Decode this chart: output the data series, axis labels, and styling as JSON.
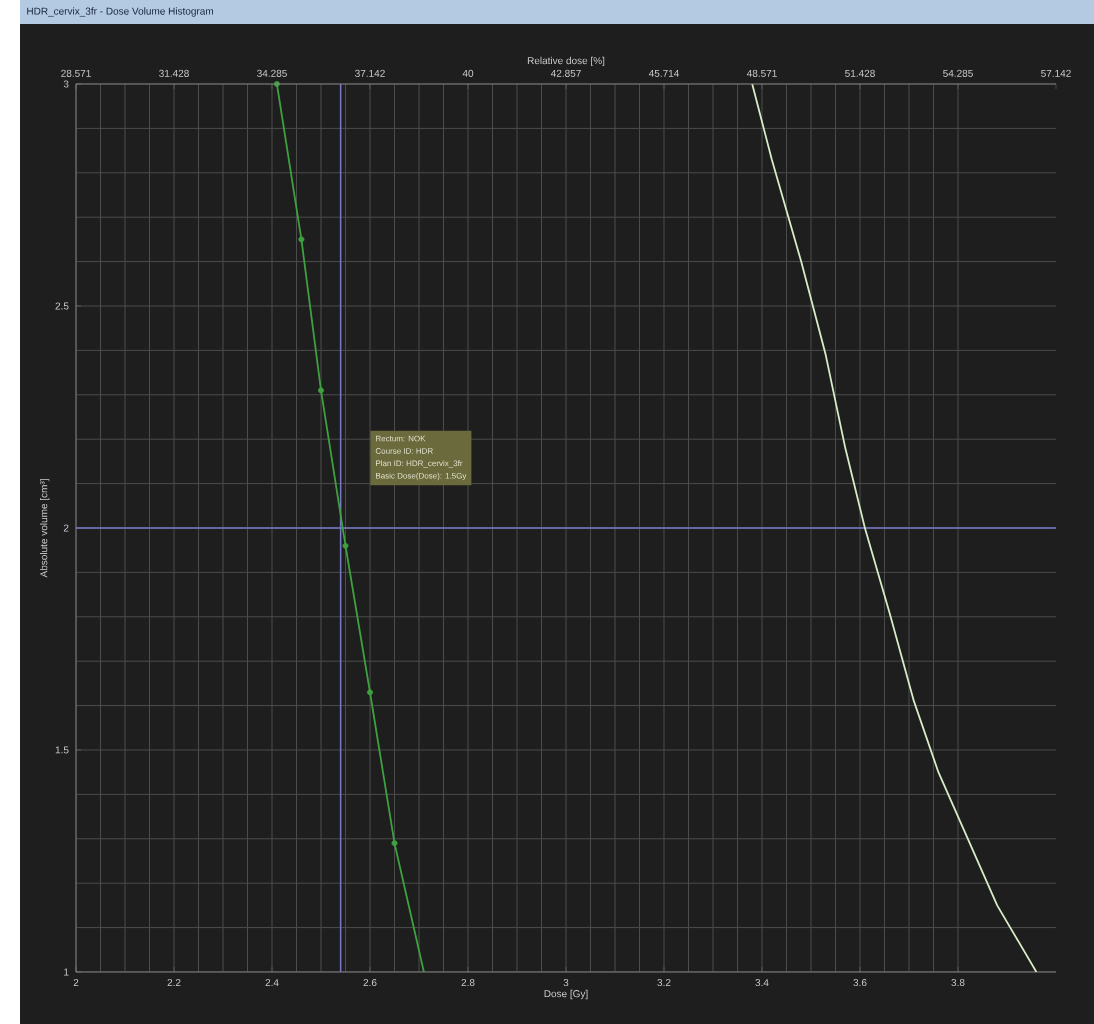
{
  "chart_data": {
    "type": "line",
    "title": "HDR_cervix_3fr - Dose Volume Histogram",
    "xlabel": "Dose [Gy]",
    "x2label": "Relative dose [%]",
    "ylabel": "Absolute volume [cm³]",
    "xlim": [
      2,
      4
    ],
    "xticks": [
      2,
      2.2,
      2.4,
      2.6,
      2.8,
      3,
      3.2,
      3.4,
      3.6,
      3.8
    ],
    "x2lim": [
      28.571,
      57.142
    ],
    "x2ticks": [
      28.571,
      31.428,
      34.285,
      37.142,
      40,
      42.857,
      45.714,
      48.571,
      51.428,
      54.285,
      57.142
    ],
    "ylim": [
      1,
      3
    ],
    "yticks": [
      1,
      1.5,
      2,
      2.5,
      3
    ],
    "grid": true,
    "series": [
      {
        "color": "#3fa03f",
        "x": [
          2.41,
          2.46,
          2.5,
          2.55,
          2.6,
          2.65,
          2.71
        ],
        "values": [
          3,
          2.65,
          2.31,
          1.96,
          1.63,
          1.29,
          1
        ]
      },
      {
        "type": "scatter",
        "marker": "circle",
        "color": "#3fa03f",
        "x": [
          2.41,
          2.46,
          2.5,
          2.55,
          2.6,
          2.65
        ],
        "values": [
          3,
          2.65,
          2.31,
          1.96,
          1.63,
          1.29
        ]
      },
      {
        "color": "#d6ebc6",
        "x": [
          3.38,
          3.42,
          3.48,
          3.53,
          3.57,
          3.61,
          3.66,
          3.71,
          3.76,
          3.82,
          3.88,
          3.96
        ],
        "values": [
          3,
          2.83,
          2.6,
          2.39,
          2.18,
          2,
          1.81,
          1.61,
          1.45,
          1.3,
          1.15,
          1
        ]
      }
    ],
    "ref_lines": [
      {
        "axis": "x",
        "value": 2.54,
        "color": "#7878c8"
      },
      {
        "axis": "y",
        "value": 2,
        "color": "#7878c8"
      }
    ],
    "annotations": [
      "Rectum: NOK",
      "Course ID: HDR",
      "Plan ID: HDR_cervix_3fr",
      "Basic Dose(Dose): 1.5Gy"
    ]
  }
}
